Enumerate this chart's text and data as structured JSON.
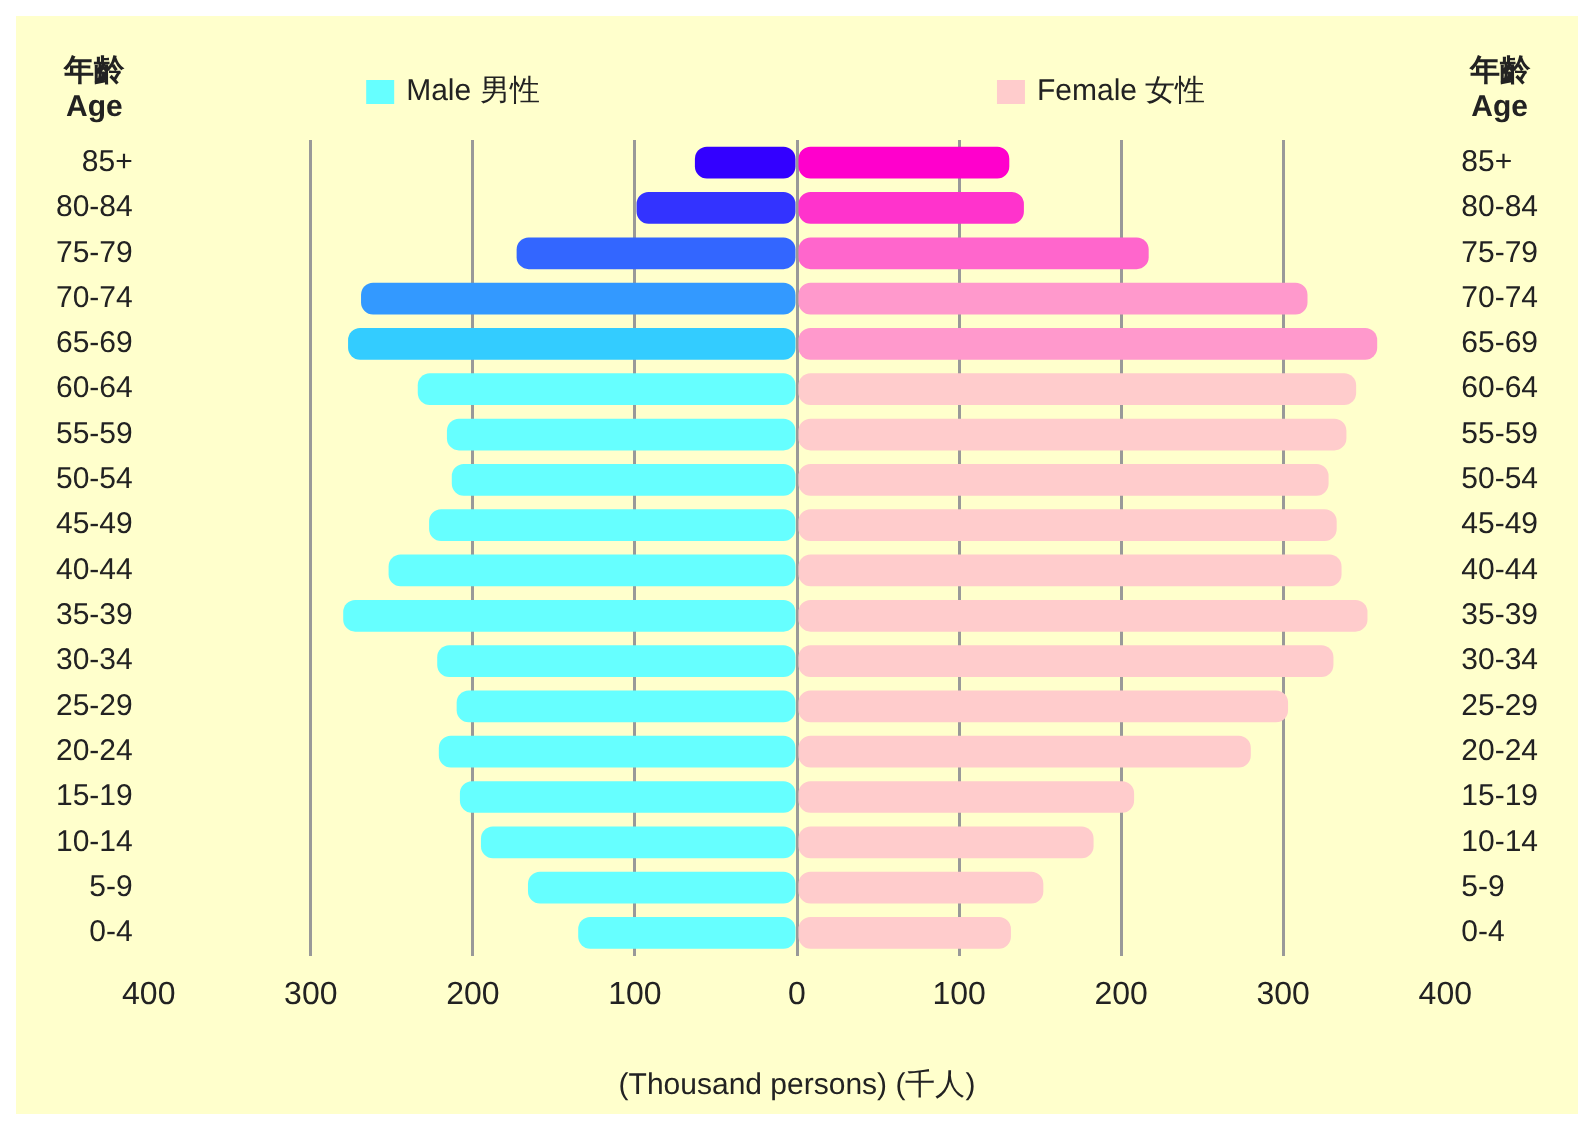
{
  "chart_data": {
    "type": "bar",
    "orientation": "horizontal",
    "xlabel": "(Thousand persons) (千人)",
    "ylabel": "年齡 Age",
    "y2label": "年齡 Age",
    "categories": [
      "85+",
      "80-84",
      "75-79",
      "70-74",
      "65-69",
      "60-64",
      "55-59",
      "50-54",
      "45-49",
      "40-44",
      "35-39",
      "30-34",
      "25-29",
      "20-24",
      "15-19",
      "10-14",
      "5-9",
      "0-4"
    ],
    "series": [
      {
        "name": "Male 男性",
        "color": "#66ffff",
        "colors": [
          "#3300ff",
          "#3333ff",
          "#3366ff",
          "#3399ff",
          "#33ccff",
          "#66ffff",
          "#66ffff",
          "#66ffff",
          "#66ffff",
          "#66ffff",
          "#66ffff",
          "#66ffff",
          "#66ffff",
          "#66ffff",
          "#66ffff",
          "#66ffff",
          "#66ffff",
          "#66ffff"
        ],
        "values": [
          -63,
          -99,
          -173,
          -269,
          -277,
          -234,
          -216,
          -213,
          -227,
          -252,
          -280,
          -222,
          -210,
          -221,
          -208,
          -195,
          -166,
          -135
        ]
      },
      {
        "name": "Female 女性",
        "color": "#ffcccc",
        "colors": [
          "#ff00cc",
          "#ff33cc",
          "#ff66cc",
          "#ff99cc",
          "#ff99cc",
          "#ffcccc",
          "#ffcccc",
          "#ffcccc",
          "#ffcccc",
          "#ffcccc",
          "#ffcccc",
          "#ffcccc",
          "#ffcccc",
          "#ffcccc",
          "#ffcccc",
          "#ffcccc",
          "#ffcccc",
          "#ffcccc"
        ],
        "values": [
          131,
          140,
          217,
          315,
          358,
          345,
          339,
          328,
          333,
          336,
          352,
          331,
          303,
          280,
          208,
          183,
          152,
          132
        ]
      }
    ],
    "xlim": [
      -400,
      400
    ],
    "xticks": [
      {
        "value": -400,
        "label": "400"
      },
      {
        "value": -300,
        "label": "300"
      },
      {
        "value": -200,
        "label": "200"
      },
      {
        "value": -100,
        "label": "100"
      },
      0,
      100,
      200,
      300,
      400
    ],
    "grid": "x",
    "legend": "top",
    "stacked": true
  }
}
